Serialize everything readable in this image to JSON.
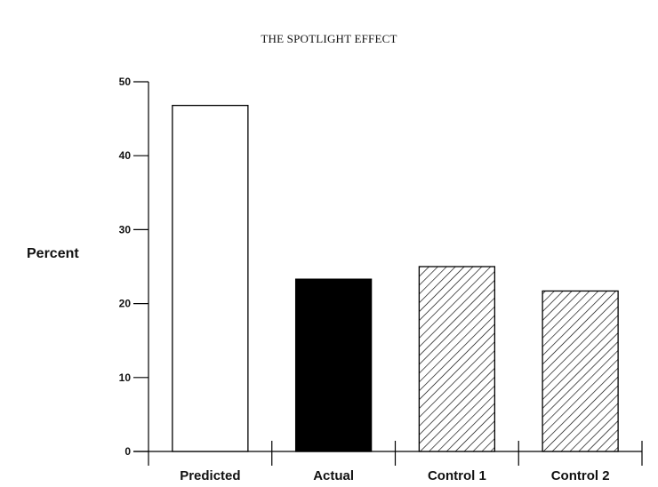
{
  "chart_data": {
    "type": "bar",
    "title": "THE SPOTLIGHT EFFECT",
    "ylabel": "Percent",
    "xlabel": "",
    "ylim": [
      0,
      50
    ],
    "yticks": [
      0,
      10,
      20,
      30,
      40,
      50
    ],
    "categories": [
      "Predicted",
      "Actual",
      "Control 1",
      "Control 2"
    ],
    "values": [
      46.8,
      23.3,
      25.0,
      21.7
    ],
    "bar_styles": [
      "open",
      "solid",
      "hatched",
      "hatched"
    ],
    "grid": false
  },
  "colors": {
    "ink": "#000000",
    "background": "#ffffff"
  }
}
